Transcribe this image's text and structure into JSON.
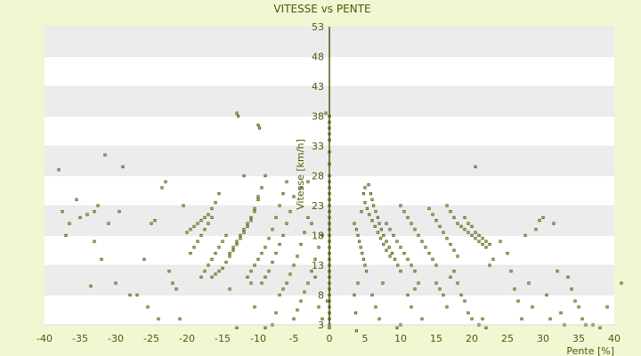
{
  "chart_data": {
    "type": "scatter",
    "title": "VITESSE vs PENTE",
    "xlabel": "Pente [%]",
    "ylabel": "Vitesse [km/h]",
    "xlim": [
      -40,
      40
    ],
    "ylim": [
      3,
      53
    ],
    "x_ticks": [
      "-40",
      "-35",
      "-30",
      "-25",
      "-20",
      "-15",
      "-10",
      "-5",
      "0",
      "5",
      "10",
      "15",
      "20",
      "25",
      "30",
      "35",
      "40"
    ],
    "y_ticks": [
      "3",
      "8",
      "13",
      "18",
      "23",
      "28",
      "33",
      "38",
      "43",
      "48",
      "53"
    ],
    "grid": true,
    "legend": "none",
    "colors": {
      "background": "#f2f6d3",
      "plot_band_light": "#ffffff",
      "plot_band_dark": "#ececec",
      "marker": "#4d5a0c",
      "marker_fill": "#c8d08a",
      "text": "#4d5a0c"
    },
    "points": [
      [
        -38,
        29
      ],
      [
        -37.5,
        22
      ],
      [
        -37,
        18
      ],
      [
        -36.5,
        20
      ],
      [
        -35.5,
        24
      ],
      [
        -35,
        21
      ],
      [
        -34,
        21.5
      ],
      [
        -33,
        22
      ],
      [
        -32.5,
        23
      ],
      [
        -32,
        14
      ],
      [
        -31.5,
        31.5
      ],
      [
        -31,
        20
      ],
      [
        -30,
        10
      ],
      [
        -29.5,
        22
      ],
      [
        -29,
        29.5
      ],
      [
        -33.5,
        9.5
      ],
      [
        -33,
        17
      ],
      [
        -28,
        8
      ],
      [
        -27,
        8
      ],
      [
        -26,
        14
      ],
      [
        -25.5,
        6
      ],
      [
        -25,
        20
      ],
      [
        -24.5,
        20.5
      ],
      [
        -24,
        4
      ],
      [
        -23.5,
        26
      ],
      [
        -23,
        27
      ],
      [
        -22.5,
        12
      ],
      [
        -22,
        10
      ],
      [
        -21.5,
        9
      ],
      [
        -21,
        4
      ],
      [
        -20.5,
        23
      ],
      [
        -20,
        18.5
      ],
      [
        -19.5,
        19
      ],
      [
        -19,
        19.5
      ],
      [
        -18.5,
        20
      ],
      [
        -18,
        20.5
      ],
      [
        -17.5,
        21
      ],
      [
        -17,
        21.5
      ],
      [
        -16.5,
        22.5
      ],
      [
        -16,
        23.5
      ],
      [
        -15.5,
        25
      ],
      [
        -19.5,
        15
      ],
      [
        -19,
        16
      ],
      [
        -18.5,
        17
      ],
      [
        -18,
        18
      ],
      [
        -17.5,
        19
      ],
      [
        -17,
        20
      ],
      [
        -16.5,
        21
      ],
      [
        -18,
        11
      ],
      [
        -17.5,
        12
      ],
      [
        -17,
        13
      ],
      [
        -16.5,
        14
      ],
      [
        -16,
        15
      ],
      [
        -15.5,
        16
      ],
      [
        -15,
        17
      ],
      [
        -14.5,
        18
      ],
      [
        -16.5,
        11
      ],
      [
        -16,
        11.5
      ],
      [
        -15.5,
        12
      ],
      [
        -15,
        12.5
      ],
      [
        -14.5,
        13.5
      ],
      [
        -14,
        14.5
      ],
      [
        -13.5,
        15.5
      ],
      [
        -13,
        16.5
      ],
      [
        -12.5,
        17.5
      ],
      [
        -12,
        18.5
      ],
      [
        -11.5,
        19.5
      ],
      [
        -11,
        20.5
      ],
      [
        -10.5,
        22
      ],
      [
        -10,
        24
      ],
      [
        -9.5,
        26
      ],
      [
        -9,
        28
      ],
      [
        -14,
        15
      ],
      [
        -13.5,
        16
      ],
      [
        -13,
        17
      ],
      [
        -12.5,
        18
      ],
      [
        -12,
        19
      ],
      [
        -11.5,
        20
      ],
      [
        -11,
        21
      ],
      [
        -10.5,
        22.5
      ],
      [
        -10,
        24.5
      ],
      [
        -13,
        38.5
      ],
      [
        -12.8,
        38
      ],
      [
        -10,
        36.5
      ],
      [
        -9.8,
        36
      ],
      [
        -12,
        28
      ],
      [
        -11,
        10
      ],
      [
        -10.5,
        6
      ],
      [
        -9,
        2.5
      ],
      [
        -8,
        3
      ],
      [
        -7.5,
        5
      ],
      [
        -13,
        2.5
      ],
      [
        -14,
        9
      ],
      [
        -11.5,
        11
      ],
      [
        -11,
        12
      ],
      [
        -10.5,
        13
      ],
      [
        -10,
        14
      ],
      [
        -9.5,
        15
      ],
      [
        -9,
        16
      ],
      [
        -8.5,
        17.5
      ],
      [
        -8,
        19
      ],
      [
        -7.5,
        21
      ],
      [
        -7,
        23
      ],
      [
        -6.5,
        25
      ],
      [
        -6,
        27
      ],
      [
        -9.5,
        10
      ],
      [
        -9,
        11
      ],
      [
        -8.5,
        12
      ],
      [
        -8,
        13.5
      ],
      [
        -7.5,
        15
      ],
      [
        -7,
        16.5
      ],
      [
        -6.5,
        18
      ],
      [
        -6,
        20
      ],
      [
        -5.5,
        22
      ],
      [
        -5,
        24.5
      ],
      [
        -7,
        8
      ],
      [
        -6.5,
        9
      ],
      [
        -6,
        10
      ],
      [
        -5.5,
        11.5
      ],
      [
        -5,
        13
      ],
      [
        -4.5,
        14.5
      ],
      [
        -4,
        16.5
      ],
      [
        -3.5,
        18.5
      ],
      [
        -3,
        21
      ],
      [
        -5,
        4
      ],
      [
        -4.5,
        5.5
      ],
      [
        -4,
        7
      ],
      [
        -3.5,
        8.5
      ],
      [
        -3,
        10
      ],
      [
        -2.5,
        12
      ],
      [
        -2,
        14
      ],
      [
        -1.5,
        16
      ],
      [
        -1,
        18
      ],
      [
        -4,
        26
      ],
      [
        -3,
        27
      ],
      [
        -2.5,
        20
      ],
      [
        -2,
        11
      ],
      [
        -1.5,
        6
      ],
      [
        -1,
        4
      ],
      [
        -0.5,
        38.5
      ],
      [
        -0.3,
        7
      ],
      [
        0,
        38
      ],
      [
        0,
        37
      ],
      [
        0,
        36
      ],
      [
        0,
        35
      ],
      [
        0,
        34
      ],
      [
        0,
        32
      ],
      [
        0,
        30
      ],
      [
        0,
        28
      ],
      [
        0,
        27
      ],
      [
        0,
        26
      ],
      [
        0,
        25
      ],
      [
        0,
        24
      ],
      [
        0,
        23
      ],
      [
        0,
        22
      ],
      [
        0,
        21
      ],
      [
        0,
        20
      ],
      [
        0,
        19
      ],
      [
        0,
        18
      ],
      [
        0,
        17
      ],
      [
        0,
        16
      ],
      [
        0,
        15
      ],
      [
        0,
        14
      ],
      [
        0,
        13
      ],
      [
        0,
        12
      ],
      [
        0,
        11
      ],
      [
        0,
        10
      ],
      [
        0,
        9
      ],
      [
        0,
        8
      ],
      [
        0,
        7
      ],
      [
        0,
        6
      ],
      [
        0,
        5
      ],
      [
        0,
        4
      ],
      [
        0,
        3
      ],
      [
        0,
        2.5
      ],
      [
        3.5,
        20
      ],
      [
        3.8,
        19
      ],
      [
        4,
        18
      ],
      [
        4.2,
        17
      ],
      [
        4.4,
        16
      ],
      [
        4.6,
        15
      ],
      [
        4.8,
        14
      ],
      [
        5,
        13
      ],
      [
        5.2,
        12
      ],
      [
        3.5,
        8
      ],
      [
        3.7,
        5
      ],
      [
        3.8,
        2
      ],
      [
        4,
        10
      ],
      [
        4.5,
        22
      ],
      [
        4.8,
        25
      ],
      [
        5,
        26
      ],
      [
        5.5,
        26.5
      ],
      [
        5.8,
        25
      ],
      [
        6,
        24
      ],
      [
        6.2,
        23
      ],
      [
        6.5,
        22
      ],
      [
        6.8,
        21
      ],
      [
        7,
        20
      ],
      [
        7.3,
        19
      ],
      [
        7.6,
        18
      ],
      [
        8,
        17
      ],
      [
        8.4,
        16
      ],
      [
        8.8,
        15
      ],
      [
        9.2,
        14
      ],
      [
        9.6,
        13
      ],
      [
        10,
        12
      ],
      [
        5,
        23.5
      ],
      [
        5.3,
        22.5
      ],
      [
        5.6,
        21.5
      ],
      [
        6,
        20.5
      ],
      [
        6.4,
        19.5
      ],
      [
        6.8,
        18.5
      ],
      [
        7.2,
        17.5
      ],
      [
        7.6,
        16.5
      ],
      [
        8,
        15.5
      ],
      [
        8.5,
        14.5
      ],
      [
        6,
        8
      ],
      [
        6.5,
        6
      ],
      [
        7,
        4
      ],
      [
        7.5,
        10
      ],
      [
        8,
        20
      ],
      [
        8.5,
        19
      ],
      [
        9,
        18
      ],
      [
        9.5,
        17
      ],
      [
        10,
        16
      ],
      [
        10.5,
        15
      ],
      [
        11,
        14
      ],
      [
        11.5,
        13
      ],
      [
        12,
        12
      ],
      [
        10,
        23
      ],
      [
        10.5,
        22
      ],
      [
        11,
        21
      ],
      [
        11.5,
        20
      ],
      [
        12,
        19
      ],
      [
        12.5,
        18
      ],
      [
        13,
        17
      ],
      [
        13.5,
        16
      ],
      [
        14,
        15
      ],
      [
        14.5,
        14
      ],
      [
        15,
        13
      ],
      [
        9.5,
        2.5
      ],
      [
        10,
        3
      ],
      [
        11,
        8
      ],
      [
        11.5,
        6
      ],
      [
        12,
        9
      ],
      [
        12.5,
        10
      ],
      [
        13,
        4
      ],
      [
        14,
        22.5
      ],
      [
        14.5,
        21.5
      ],
      [
        15,
        20.5
      ],
      [
        15.5,
        19.5
      ],
      [
        16,
        18.5
      ],
      [
        16.5,
        17.5
      ],
      [
        17,
        16.5
      ],
      [
        17.5,
        15.5
      ],
      [
        18,
        14.5
      ],
      [
        16.5,
        23
      ],
      [
        17,
        22
      ],
      [
        17.5,
        21
      ],
      [
        18,
        20
      ],
      [
        18.5,
        19.5
      ],
      [
        19,
        19
      ],
      [
        19.5,
        18.5
      ],
      [
        20,
        18
      ],
      [
        20.5,
        17.5
      ],
      [
        21,
        17
      ],
      [
        21.5,
        16.5
      ],
      [
        22,
        16
      ],
      [
        15,
        10
      ],
      [
        15.5,
        9
      ],
      [
        16,
        8
      ],
      [
        16.5,
        6
      ],
      [
        17,
        11
      ],
      [
        17.5,
        12
      ],
      [
        18,
        10
      ],
      [
        18.5,
        8
      ],
      [
        19,
        7
      ],
      [
        19.5,
        5
      ],
      [
        20,
        4
      ],
      [
        20.5,
        29.5
      ],
      [
        21,
        3
      ],
      [
        21.5,
        4
      ],
      [
        22,
        2.5
      ],
      [
        22.5,
        13
      ],
      [
        23,
        14
      ],
      [
        19,
        21
      ],
      [
        19.5,
        20
      ],
      [
        20,
        19.5
      ],
      [
        20.5,
        18.5
      ],
      [
        21,
        18
      ],
      [
        21.5,
        17.5
      ],
      [
        22,
        17
      ],
      [
        22.5,
        16.5
      ],
      [
        24,
        17
      ],
      [
        25,
        15
      ],
      [
        25.5,
        12
      ],
      [
        26,
        9
      ],
      [
        26.5,
        7
      ],
      [
        27,
        4
      ],
      [
        27.5,
        18
      ],
      [
        28,
        10
      ],
      [
        28.5,
        6
      ],
      [
        29,
        19
      ],
      [
        29.5,
        20.5
      ],
      [
        30,
        21
      ],
      [
        30.5,
        8
      ],
      [
        31,
        4
      ],
      [
        31.5,
        20
      ],
      [
        32,
        12
      ],
      [
        32.5,
        5
      ],
      [
        33,
        3
      ],
      [
        33.5,
        11
      ],
      [
        34,
        9
      ],
      [
        34.5,
        7
      ],
      [
        35,
        6
      ],
      [
        35.5,
        4
      ],
      [
        36,
        3
      ],
      [
        37,
        3
      ],
      [
        38,
        2.5
      ],
      [
        39,
        6
      ],
      [
        41,
        10
      ]
    ]
  }
}
